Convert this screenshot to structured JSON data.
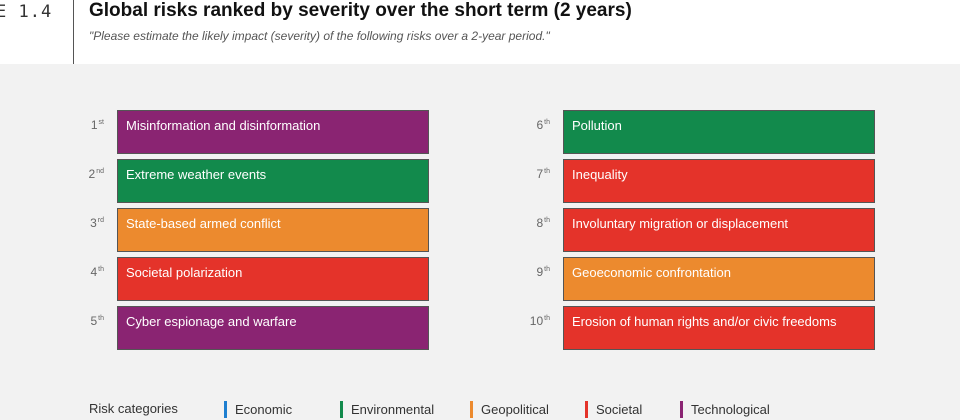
{
  "figure_label": "E 1.4",
  "title": "Global risks ranked by severity over the short term (2 years)",
  "subtitle": "\"Please estimate the likely impact (severity) of the following risks over a 2-year period.\"",
  "colors": {
    "Economic": "#1e7fd0",
    "Environmental": "#128a4c",
    "Geopolitical": "#ec8a2e",
    "Societal": "#e4332a",
    "Technological": "#8a2472"
  },
  "risks": [
    {
      "rank": "1",
      "suffix": "st",
      "label": "Misinformation and disinformation",
      "category": "Technological"
    },
    {
      "rank": "2",
      "suffix": "nd",
      "label": "Extreme weather events",
      "category": "Environmental"
    },
    {
      "rank": "3",
      "suffix": "rd",
      "label": "State-based armed conflict",
      "category": "Geopolitical"
    },
    {
      "rank": "4",
      "suffix": "th",
      "label": "Societal polarization",
      "category": "Societal"
    },
    {
      "rank": "5",
      "suffix": "th",
      "label": "Cyber espionage and warfare",
      "category": "Technological"
    },
    {
      "rank": "6",
      "suffix": "th",
      "label": "Pollution",
      "category": "Environmental"
    },
    {
      "rank": "7",
      "suffix": "th",
      "label": "Inequality",
      "category": "Societal"
    },
    {
      "rank": "8",
      "suffix": "th",
      "label": "Involuntary migration or displacement",
      "category": "Societal"
    },
    {
      "rank": "9",
      "suffix": "th",
      "label": "Geoeconomic confrontation",
      "category": "Geopolitical"
    },
    {
      "rank": "10",
      "suffix": "th",
      "label": "Erosion of human rights and/or civic freedoms",
      "category": "Societal"
    }
  ],
  "legend": {
    "title": "Risk categories",
    "items": [
      "Economic",
      "Environmental",
      "Geopolitical",
      "Societal",
      "Technological"
    ]
  }
}
